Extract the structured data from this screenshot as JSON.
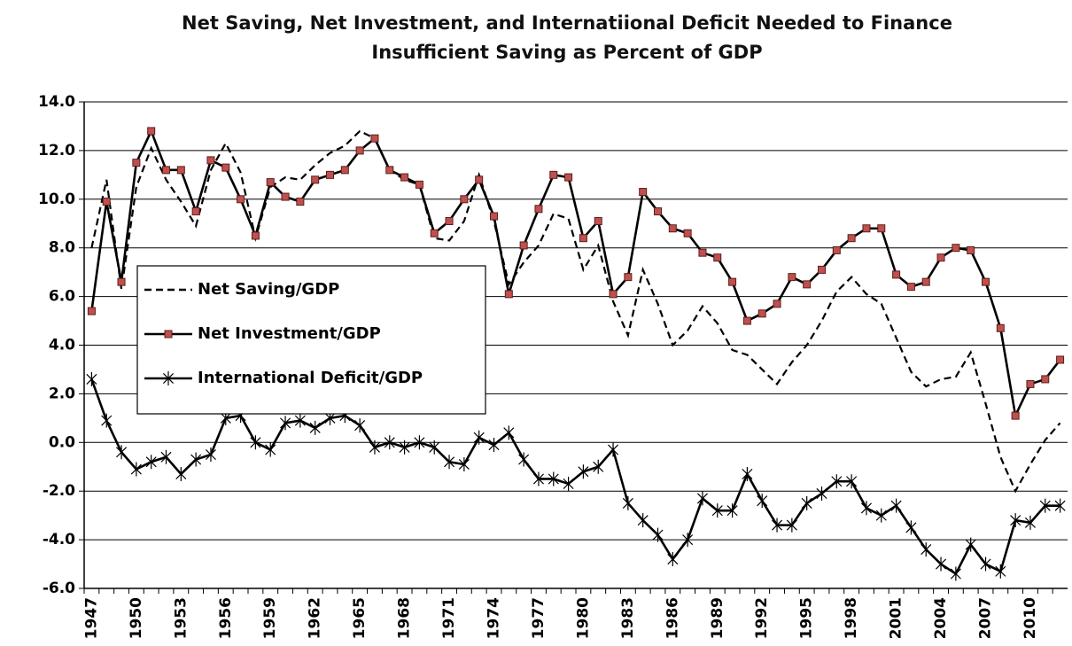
{
  "chart_data": {
    "type": "line",
    "title": [
      "Net Saving, Net Investment, and Internatiional Deficit Needed to Finance",
      "Insufficient Saving as Percent of GDP"
    ],
    "categories": [
      "1947",
      null,
      null,
      "1950",
      null,
      null,
      "1953",
      null,
      null,
      "1956",
      null,
      null,
      "1959",
      null,
      null,
      "1962",
      null,
      null,
      "1965",
      null,
      null,
      "1968",
      null,
      null,
      "1971",
      null,
      null,
      "1974",
      null,
      null,
      "1977",
      null,
      null,
      "1980",
      null,
      null,
      "1983",
      null,
      null,
      "1986",
      null,
      null,
      "1989",
      null,
      null,
      "1992",
      null,
      null,
      "1995",
      null,
      null,
      "1998",
      null,
      null,
      "2001",
      null,
      null,
      "2004",
      null,
      null,
      "2007",
      null,
      null,
      "2010",
      null,
      null
    ],
    "series": [
      {
        "name": "Net Saving/GDP",
        "color": "#000000",
        "style": "dashed",
        "marker": null,
        "values": [
          8.0,
          10.8,
          6.3,
          10.5,
          12.1,
          10.8,
          9.9,
          8.9,
          11.2,
          12.3,
          11.1,
          8.4,
          10.5,
          10.9,
          10.8,
          11.4,
          11.9,
          12.2,
          12.8,
          12.5,
          11.2,
          10.8,
          10.6,
          8.4,
          8.3,
          9.1,
          11.0,
          9.1,
          6.5,
          7.4,
          8.1,
          9.4,
          9.2,
          7.1,
          8.1,
          5.8,
          4.4,
          7.1,
          5.7,
          4.0,
          4.6,
          5.6,
          4.9,
          3.8,
          3.6,
          3.0,
          2.4,
          3.3,
          4.0,
          5.0,
          6.2,
          6.8,
          6.1,
          5.7,
          4.3,
          2.9,
          2.3,
          2.6,
          2.7,
          3.7,
          1.6,
          -0.6,
          -2.0,
          -0.9,
          0.1,
          0.8
        ]
      },
      {
        "name": "Net Investment/GDP",
        "color": "#000000",
        "marker_color": "#c0504d",
        "style": "solid",
        "marker": "square",
        "values": [
          5.4,
          9.9,
          6.6,
          11.5,
          12.8,
          11.2,
          11.2,
          9.5,
          11.6,
          11.3,
          10.0,
          8.5,
          10.7,
          10.1,
          9.9,
          10.8,
          11.0,
          11.2,
          12.0,
          12.5,
          11.2,
          10.9,
          10.6,
          8.6,
          9.1,
          10.0,
          10.8,
          9.3,
          6.1,
          8.1,
          9.6,
          11.0,
          10.9,
          8.4,
          9.1,
          6.1,
          6.8,
          10.3,
          9.5,
          8.8,
          8.6,
          7.8,
          7.6,
          6.6,
          5.0,
          5.3,
          5.7,
          6.8,
          6.5,
          7.1,
          7.9,
          8.4,
          8.8,
          8.8,
          6.9,
          6.4,
          6.6,
          7.6,
          8.0,
          7.9,
          6.6,
          4.7,
          1.1,
          2.4,
          2.6,
          3.4
        ]
      },
      {
        "name": "International Deficit/GDP",
        "color": "#000000",
        "style": "solid",
        "marker": "asterisk",
        "values": [
          2.6,
          0.9,
          -0.4,
          -1.1,
          -0.8,
          -0.6,
          -1.3,
          -0.7,
          -0.5,
          1.0,
          1.1,
          0.0,
          -0.3,
          0.8,
          0.9,
          0.6,
          1.0,
          1.1,
          0.7,
          -0.2,
          0.0,
          -0.2,
          0.0,
          -0.2,
          -0.8,
          -0.9,
          0.2,
          -0.1,
          0.4,
          -0.7,
          -1.5,
          -1.5,
          -1.7,
          -1.2,
          -1.0,
          -0.3,
          -2.5,
          -3.2,
          -3.8,
          -4.8,
          -4.0,
          -2.3,
          -2.8,
          -2.8,
          -1.3,
          -2.4,
          -3.4,
          -3.4,
          -2.5,
          -2.1,
          -1.6,
          -1.6,
          -2.7,
          -3.0,
          -2.6,
          -3.5,
          -4.4,
          -5.0,
          -5.4,
          -4.2,
          -5.0,
          -5.3,
          -3.2,
          -3.3,
          -2.6,
          -2.6
        ]
      }
    ],
    "ylim": [
      -6,
      14
    ],
    "yticks": [
      {
        "value": -6,
        "label": "-6.0"
      },
      {
        "value": -4,
        "label": "-4.0"
      },
      {
        "value": -2,
        "label": "-2.0"
      },
      {
        "value": 0,
        "label": "0.0"
      },
      {
        "value": 2,
        "label": "2.0"
      },
      {
        "value": 4,
        "label": "4.0"
      },
      {
        "value": 6,
        "label": "6.0"
      },
      {
        "value": 8,
        "label": "8.0"
      },
      {
        "value": 10,
        "label": "10.0"
      },
      {
        "value": 12,
        "label": "12.0"
      },
      {
        "value": 14,
        "label": "14.0"
      }
    ],
    "grid": true,
    "legend": "upper left"
  }
}
